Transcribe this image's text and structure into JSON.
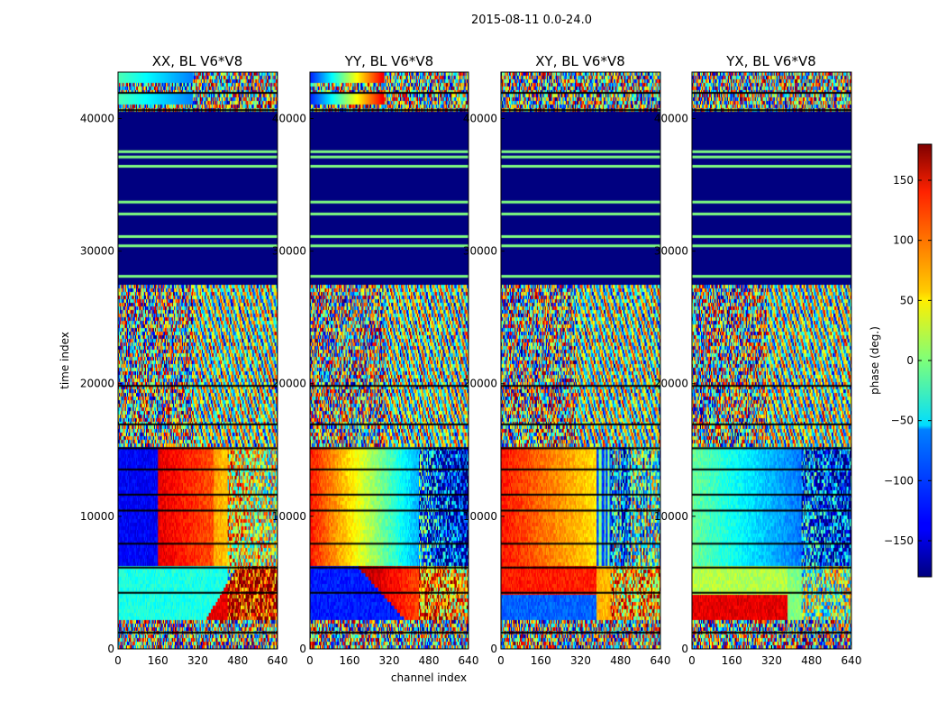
{
  "chart_data": {
    "type": "heatmap",
    "suptitle": "2015-08-11 0.0-24.0",
    "panels": [
      {
        "title": "XX, BL V6*V8",
        "kind": "XX"
      },
      {
        "title": "YY, BL V6*V8",
        "kind": "YY"
      },
      {
        "title": "XY, BL V6*V8",
        "kind": "XY"
      },
      {
        "title": "YX, BL V6*V8",
        "kind": "YX"
      }
    ],
    "xlabel": "channel index",
    "ylabel": "time index",
    "xlim": [
      0,
      640
    ],
    "ylim": [
      0,
      43500
    ],
    "xticks": [
      0,
      160,
      320,
      480,
      640
    ],
    "yticks": [
      0,
      10000,
      20000,
      30000,
      40000
    ],
    "xtick_labels": [
      "0",
      "160",
      "320",
      "480",
      "640"
    ],
    "ytick_labels": [
      "0",
      "10000",
      "20000",
      "30000",
      "40000"
    ],
    "colorbar": {
      "label": "phase (deg.)",
      "range": [
        -180,
        180
      ],
      "ticks": [
        -150,
        -100,
        -50,
        0,
        50,
        100,
        150
      ],
      "tick_labels": [
        "−150",
        "−100",
        "−50",
        "0",
        "50",
        "100",
        "150"
      ],
      "colormap": "jet"
    },
    "regions": [
      {
        "from": 0,
        "to": 2200,
        "type": "noise"
      },
      {
        "from": 2200,
        "to": 6200,
        "type": "signal_lower"
      },
      {
        "from": 6200,
        "to": 15200,
        "type": "signal_upper"
      },
      {
        "from": 15200,
        "to": 27400,
        "type": "noise"
      },
      {
        "from": 27400,
        "to": 40500,
        "type": "flagged"
      },
      {
        "from": 40500,
        "to": 43500,
        "type": "noise_top"
      }
    ]
  },
  "colors": {
    "flagged": "#00007f",
    "separator": "#80ff80",
    "row_gap": "#000000"
  }
}
